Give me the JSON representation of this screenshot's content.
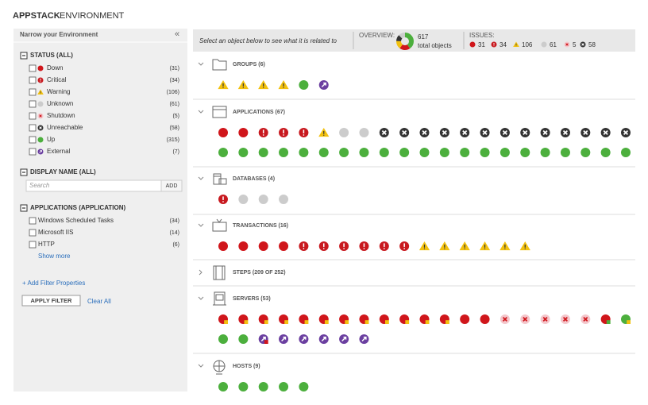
{
  "header": {
    "title_bold": "APPSTACK",
    "title_rest": "ENVIRONMENT"
  },
  "sidebar": {
    "title": "Narrow your Environment",
    "collapse": "«",
    "status": {
      "heading": "STATUS (ALL)",
      "items": [
        {
          "label": "Down",
          "count": "(31)"
        },
        {
          "label": "Critical",
          "count": "(34)"
        },
        {
          "label": "Warning",
          "count": "(106)"
        },
        {
          "label": "Unknown",
          "count": "(61)"
        },
        {
          "label": "Shutdown",
          "count": "(5)"
        },
        {
          "label": "Unreachable",
          "count": "(58)"
        },
        {
          "label": "Up",
          "count": "(315)"
        },
        {
          "label": "External",
          "count": "(7)"
        }
      ]
    },
    "display_name": {
      "heading": "DISPLAY NAME (ALL)",
      "search_placeholder": "Search",
      "add_button": "ADD"
    },
    "applications": {
      "heading": "APPLICATIONS (APPLICATION)",
      "items": [
        {
          "label": "Windows Scheduled Tasks",
          "count": "(34)"
        },
        {
          "label": "Microsoft IIS",
          "count": "(14)"
        },
        {
          "label": "HTTP",
          "count": "(6)"
        }
      ],
      "show_more": "Show more"
    },
    "add_filter": "+ Add Filter Properties",
    "apply_button": "APPLY FILTER",
    "clear_all": "Clear All"
  },
  "toolbar": {
    "hint": "Select an object below to see what it is related to",
    "overview_label": "OVERVIEW:",
    "total": "617",
    "total_label": "total objects",
    "issues_label": "ISSUES:",
    "issues": [
      "31",
      "34",
      "106",
      "61",
      "5",
      "58"
    ]
  },
  "sections": [
    {
      "label": "GROUPS (6)"
    },
    {
      "label": "APPLICATIONS (67)"
    },
    {
      "label": "DATABASES (4)"
    },
    {
      "label": "TRANSACTIONS (16)"
    },
    {
      "label": "STEPS (209 OF 252)"
    },
    {
      "label": "SERVERS (53)"
    },
    {
      "label": "HOSTS (9)"
    }
  ]
}
